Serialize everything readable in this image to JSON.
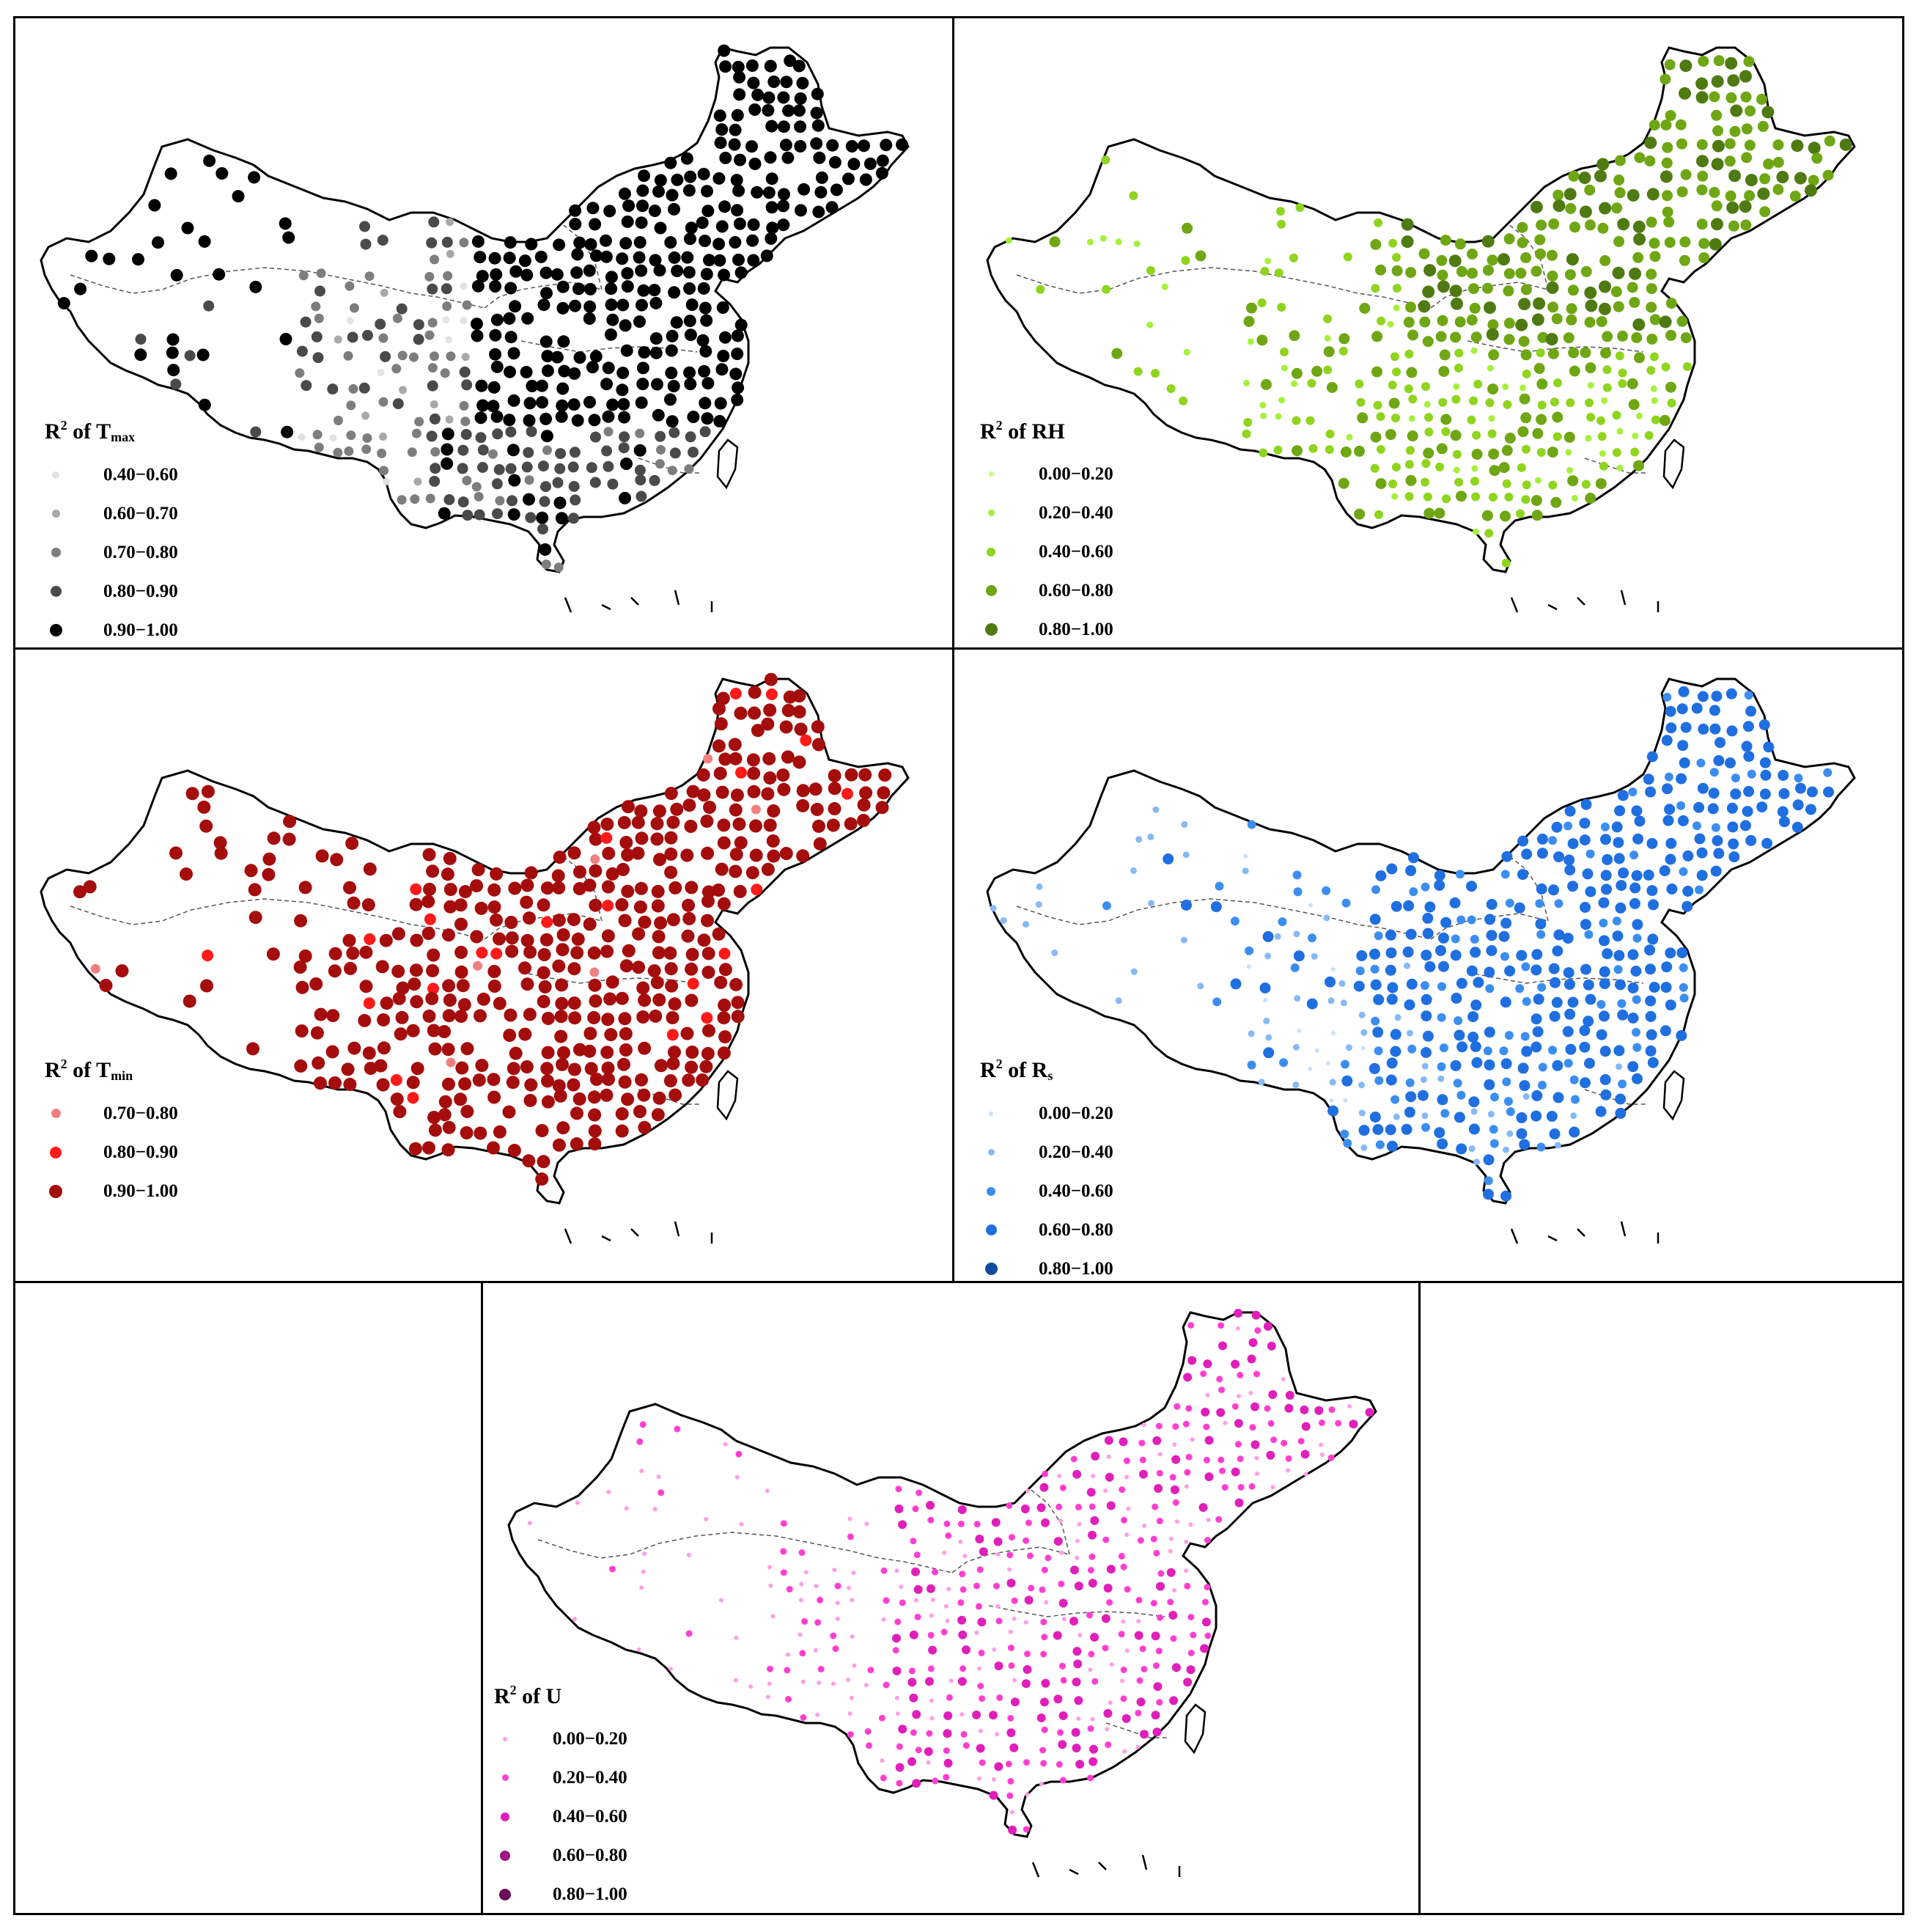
{
  "panels": [
    {
      "id": "tmax",
      "title": {
        "prefix": "R",
        "sup": "2",
        "mid": " of T",
        "sub": "max"
      },
      "legend": [
        {
          "label": "0.40−0.60",
          "color": "#e3e3e3",
          "size": 10
        },
        {
          "label": "0.60−0.70",
          "color": "#a8a8a8",
          "size": 11
        },
        {
          "label": "0.70−0.80",
          "color": "#7d7d7d",
          "size": 13
        },
        {
          "label": "0.80−0.90",
          "color": "#4a4a4a",
          "size": 15
        },
        {
          "label": "0.90−1.00",
          "color": "#000000",
          "size": 17
        }
      ]
    },
    {
      "id": "rh",
      "title": {
        "prefix": "R",
        "sup": "2",
        "mid": " of RH",
        "sub": ""
      },
      "legend": [
        {
          "label": "0.00−0.20",
          "color": "#c8ff7a",
          "size": 7
        },
        {
          "label": "0.20−0.40",
          "color": "#a6f03c",
          "size": 9
        },
        {
          "label": "0.40−0.60",
          "color": "#8fd41d",
          "size": 12
        },
        {
          "label": "0.60−0.80",
          "color": "#6fa613",
          "size": 15
        },
        {
          "label": "0.80−1.00",
          "color": "#4f7a12",
          "size": 17
        }
      ]
    },
    {
      "id": "tmin",
      "title": {
        "prefix": "R",
        "sup": "2",
        "mid": " of T",
        "sub": "min"
      },
      "legend": [
        {
          "label": "0.70−0.80",
          "color": "#f08080",
          "size": 13
        },
        {
          "label": "0.80−0.90",
          "color": "#ff1a1a",
          "size": 16
        },
        {
          "label": "0.90−1.00",
          "color": "#a50d0d",
          "size": 18
        }
      ]
    },
    {
      "id": "rs",
      "title": {
        "prefix": "R",
        "sup": "2",
        "mid": " of R",
        "sub": "s"
      },
      "legend": [
        {
          "label": "0.00−0.20",
          "color": "#c9e1ff",
          "size": 6
        },
        {
          "label": "0.20−0.40",
          "color": "#86b9f5",
          "size": 9
        },
        {
          "label": "0.40−0.60",
          "color": "#3b8ef0",
          "size": 12
        },
        {
          "label": "0.60−0.80",
          "color": "#1f6fe0",
          "size": 15
        },
        {
          "label": "0.80−1.00",
          "color": "#114a9e",
          "size": 17
        }
      ]
    },
    {
      "id": "u",
      "title": {
        "prefix": "R",
        "sup": "2",
        "mid": " of U",
        "sub": ""
      },
      "legend": [
        {
          "label": "0.00−0.20",
          "color": "#ff9ee6",
          "size": 6
        },
        {
          "label": "0.20−0.40",
          "color": "#ff3fd0",
          "size": 9
        },
        {
          "label": "0.40−0.60",
          "color": "#e01fba",
          "size": 12
        },
        {
          "label": "0.60−0.80",
          "color": "#a01486",
          "size": 14
        },
        {
          "label": "0.80−1.00",
          "color": "#6a0e59",
          "size": 16
        }
      ]
    }
  ]
}
